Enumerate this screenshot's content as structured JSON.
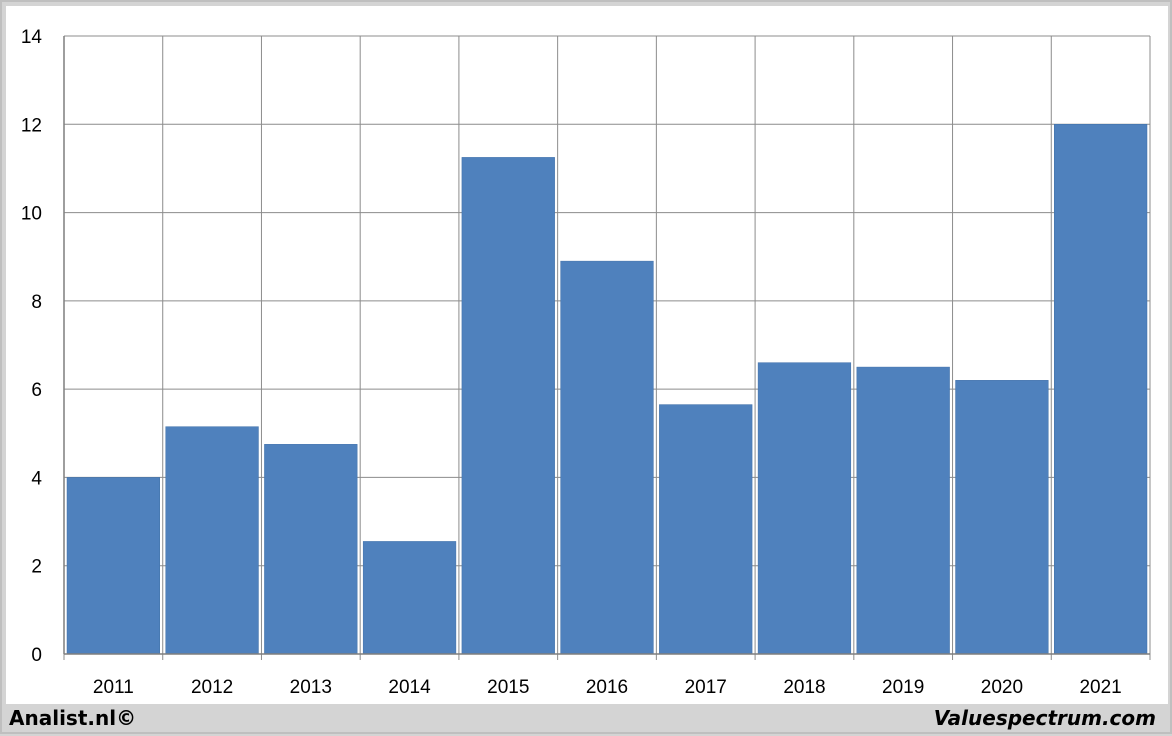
{
  "chart_data": {
    "type": "bar",
    "categories": [
      "2011",
      "2012",
      "2013",
      "2014",
      "2015",
      "2016",
      "2017",
      "2018",
      "2019",
      "2020",
      "2021"
    ],
    "values": [
      4.0,
      5.15,
      4.75,
      2.55,
      11.25,
      8.9,
      5.65,
      6.6,
      6.5,
      6.2,
      12.0
    ],
    "title": "",
    "xlabel": "",
    "ylabel": "",
    "ylim": [
      0,
      14
    ],
    "yticks": [
      "0",
      "2",
      "4",
      "6",
      "8",
      "10",
      "12",
      "14"
    ],
    "grid": true,
    "legend": "none",
    "bar_color": "#4f81bd",
    "grid_color": "#8c8c8c"
  },
  "footer": {
    "left": "Analist.nl©",
    "right": "Valuespectrum.com"
  }
}
